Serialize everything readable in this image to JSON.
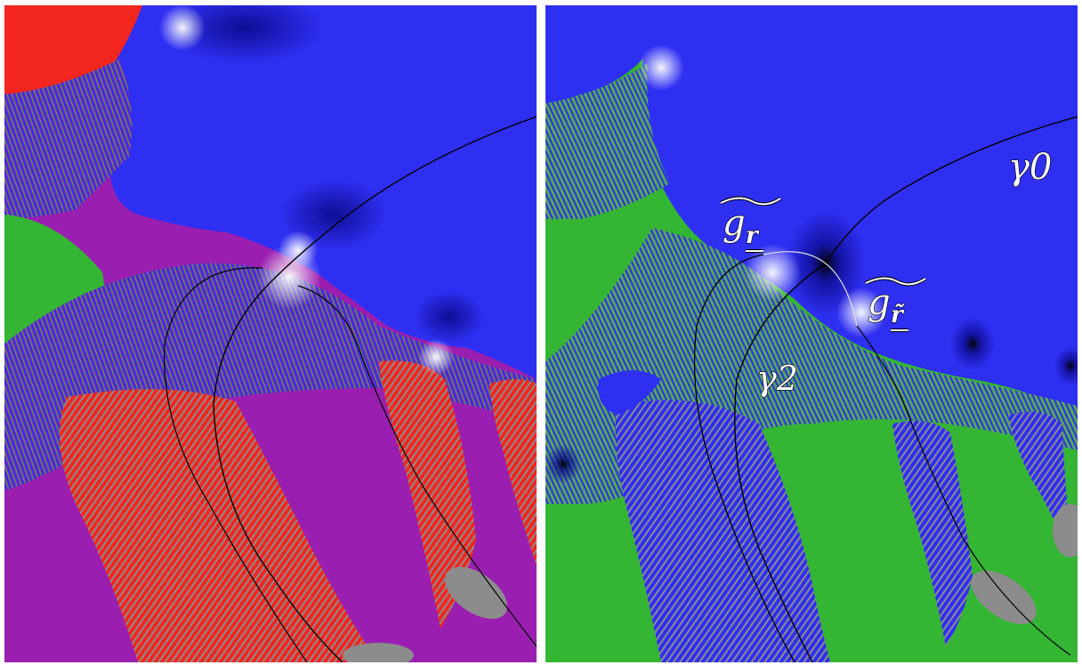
{
  "figure": {
    "panels": [
      {
        "id": "left",
        "description_free": true
      },
      {
        "id": "right",
        "labels": {
          "gamma0": "γ0",
          "gamma2": "γ2",
          "g_r": "g",
          "g_r_sub": "r",
          "g_rt": "g",
          "g_rt_sub": "r̃"
        }
      }
    ],
    "colors": {
      "blue": "#2f2ff2",
      "red": "#f2261f",
      "purple": "#9a1fb0",
      "green": "#34b534",
      "gray": "#8c8c8c",
      "black": "#000000",
      "white": "#ffffff"
    }
  }
}
